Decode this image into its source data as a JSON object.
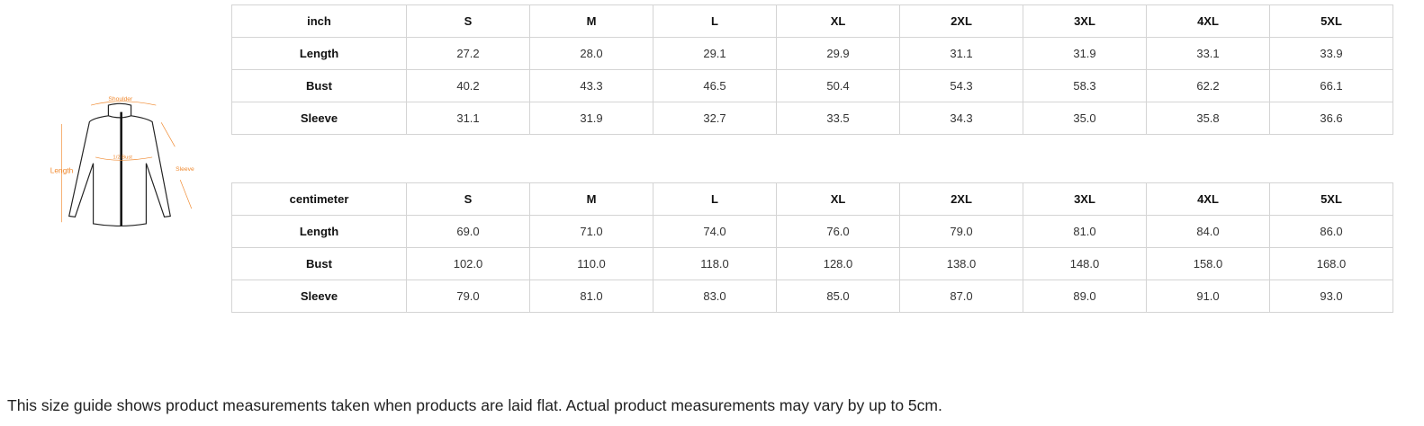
{
  "diagram": {
    "labels": {
      "shoulder": "Shoulder",
      "bust": "1/2 Bust",
      "length": "Length",
      "sleeve": "Sleeve"
    },
    "accent_color": "#f0892f"
  },
  "tables": [
    {
      "unit": "inch",
      "sizes": [
        "S",
        "M",
        "L",
        "XL",
        "2XL",
        "3XL",
        "4XL",
        "5XL"
      ],
      "rows": [
        {
          "label": "Length",
          "values": [
            "27.2",
            "28.0",
            "29.1",
            "29.9",
            "31.1",
            "31.9",
            "33.1",
            "33.9"
          ]
        },
        {
          "label": "Bust",
          "values": [
            "40.2",
            "43.3",
            "46.5",
            "50.4",
            "54.3",
            "58.3",
            "62.2",
            "66.1"
          ]
        },
        {
          "label": "Sleeve",
          "values": [
            "31.1",
            "31.9",
            "32.7",
            "33.5",
            "34.3",
            "35.0",
            "35.8",
            "36.6"
          ]
        }
      ]
    },
    {
      "unit": "centimeter",
      "sizes": [
        "S",
        "M",
        "L",
        "XL",
        "2XL",
        "3XL",
        "4XL",
        "5XL"
      ],
      "rows": [
        {
          "label": "Length",
          "values": [
            "69.0",
            "71.0",
            "74.0",
            "76.0",
            "79.0",
            "81.0",
            "84.0",
            "86.0"
          ]
        },
        {
          "label": "Bust",
          "values": [
            "102.0",
            "110.0",
            "118.0",
            "128.0",
            "138.0",
            "148.0",
            "158.0",
            "168.0"
          ]
        },
        {
          "label": "Sleeve",
          "values": [
            "79.0",
            "81.0",
            "83.0",
            "85.0",
            "87.0",
            "89.0",
            "91.0",
            "93.0"
          ]
        }
      ]
    }
  ],
  "note": "This size guide shows product measurements taken when products are laid flat. Actual product measurements may vary by up to 5cm."
}
